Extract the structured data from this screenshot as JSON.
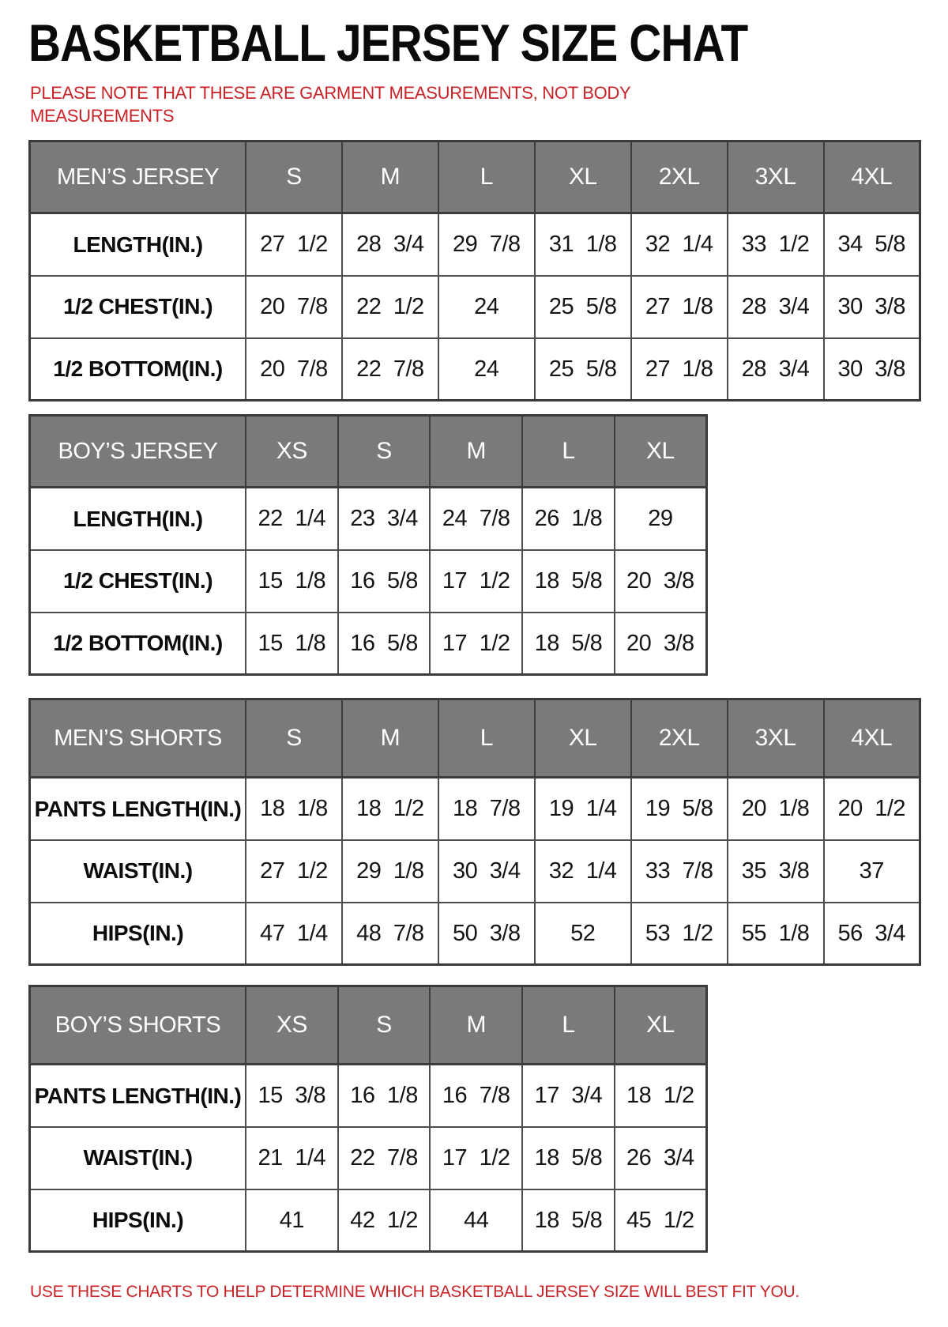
{
  "page": {
    "title": "BASKETBALL JERSEY SIZE CHAT",
    "note": "PLEASE NOTE THAT THESE ARE GARMENT MEASUREMENTS, NOT BODY MEASUREMENTS",
    "footer": "USE THESE CHARTS TO HELP DETERMINE WHICH BASKETBALL JERSEY SIZE WILL BEST FIT YOU.",
    "colors": {
      "note_red": "#c92327",
      "header_gray": "#7a7a7a",
      "border_dark": "#3a3a3a",
      "border_inner": "#4e4e4e"
    }
  },
  "chart_data": [
    {
      "type": "table",
      "name": "mens-jersey",
      "columns": [
        "MEN’S JERSEY",
        "S",
        "M",
        "L",
        "XL",
        "2XL",
        "3XL",
        "4XL"
      ],
      "rows": [
        [
          "LENGTH(IN.)",
          "27 1/2",
          "28 3/4",
          "29 7/8",
          "31 1/8",
          "32 1/4",
          "33 1/2",
          "34 5/8"
        ],
        [
          "1/2 CHEST(IN.)",
          "20 7/8",
          "22 1/2",
          "24",
          "25 5/8",
          "27 1/8",
          "28 3/4",
          "30 3/8"
        ],
        [
          "1/2 BOTTOM(IN.)",
          "20 7/8",
          "22 7/8",
          "24",
          "25 5/8",
          "27 1/8",
          "28 3/4",
          "30 3/8"
        ]
      ]
    },
    {
      "type": "table",
      "name": "boys-jersey",
      "columns": [
        "BOY’S JERSEY",
        "XS",
        "S",
        "M",
        "L",
        "XL"
      ],
      "rows": [
        [
          "LENGTH(IN.)",
          "22 1/4",
          "23 3/4",
          "24 7/8",
          "26 1/8",
          "29"
        ],
        [
          "1/2 CHEST(IN.)",
          "15 1/8",
          "16 5/8",
          "17 1/2",
          "18 5/8",
          "20 3/8"
        ],
        [
          "1/2 BOTTOM(IN.)",
          "15 1/8",
          "16 5/8",
          "17 1/2",
          "18 5/8",
          "20 3/8"
        ]
      ]
    },
    {
      "type": "table",
      "name": "mens-shorts",
      "columns": [
        "MEN’S SHORTS",
        "S",
        "M",
        "L",
        "XL",
        "2XL",
        "3XL",
        "4XL"
      ],
      "rows": [
        [
          "PANTS LENGTH(IN.)",
          "18 1/8",
          "18 1/2",
          "18 7/8",
          "19 1/4",
          "19 5/8",
          "20 1/8",
          "20 1/2"
        ],
        [
          "WAIST(IN.)",
          "27 1/2",
          "29 1/8",
          "30 3/4",
          "32 1/4",
          "33 7/8",
          "35 3/8",
          "37"
        ],
        [
          "HIPS(IN.)",
          "47 1/4",
          "48 7/8",
          "50 3/8",
          "52",
          "53 1/2",
          "55 1/8",
          "56 3/4"
        ]
      ]
    },
    {
      "type": "table",
      "name": "boys-shorts",
      "columns": [
        "BOY’S SHORTS",
        "XS",
        "S",
        "M",
        "L",
        "XL"
      ],
      "rows": [
        [
          "PANTS LENGTH(IN.)",
          "15 3/8",
          "16 1/8",
          "16 7/8",
          "17 3/4",
          "18 1/2"
        ],
        [
          "WAIST(IN.)",
          "21 1/4",
          "22 7/8",
          "17 1/2",
          "18 5/8",
          "26 3/4"
        ],
        [
          "HIPS(IN.)",
          "41",
          "42 1/2",
          "44",
          "18 5/8",
          "45 1/2"
        ]
      ]
    }
  ]
}
